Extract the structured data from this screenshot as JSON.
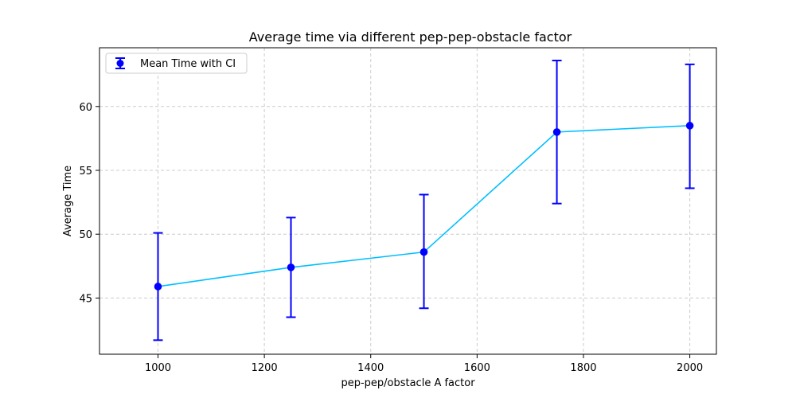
{
  "chart_data": {
    "type": "line",
    "title": "Average time via different pep-pep-obstacle factor",
    "xlabel": "pep-pep/obstacle A factor",
    "ylabel": "Average Time",
    "x": [
      1000,
      1250,
      1500,
      1750,
      2000
    ],
    "series": [
      {
        "name": "Mean Time with CI",
        "values": [
          45.9,
          47.4,
          48.6,
          58.0,
          58.5
        ],
        "ci_lower": [
          41.7,
          43.5,
          44.2,
          52.4,
          53.6
        ],
        "ci_upper": [
          50.1,
          51.3,
          53.1,
          63.6,
          63.3
        ]
      }
    ],
    "xlim": [
      890,
      2050
    ],
    "ylim": [
      40.6,
      64.6
    ],
    "xticks": [
      1000,
      1200,
      1400,
      1600,
      1800,
      2000
    ],
    "yticks": [
      45,
      50,
      55,
      60
    ],
    "grid": true,
    "legend_position": "top-left",
    "colors": {
      "line": "#00bfff",
      "marker": "#0000ff",
      "errorbar": "#0000ff",
      "grid": "#cccccc",
      "axes": "#000000"
    }
  }
}
